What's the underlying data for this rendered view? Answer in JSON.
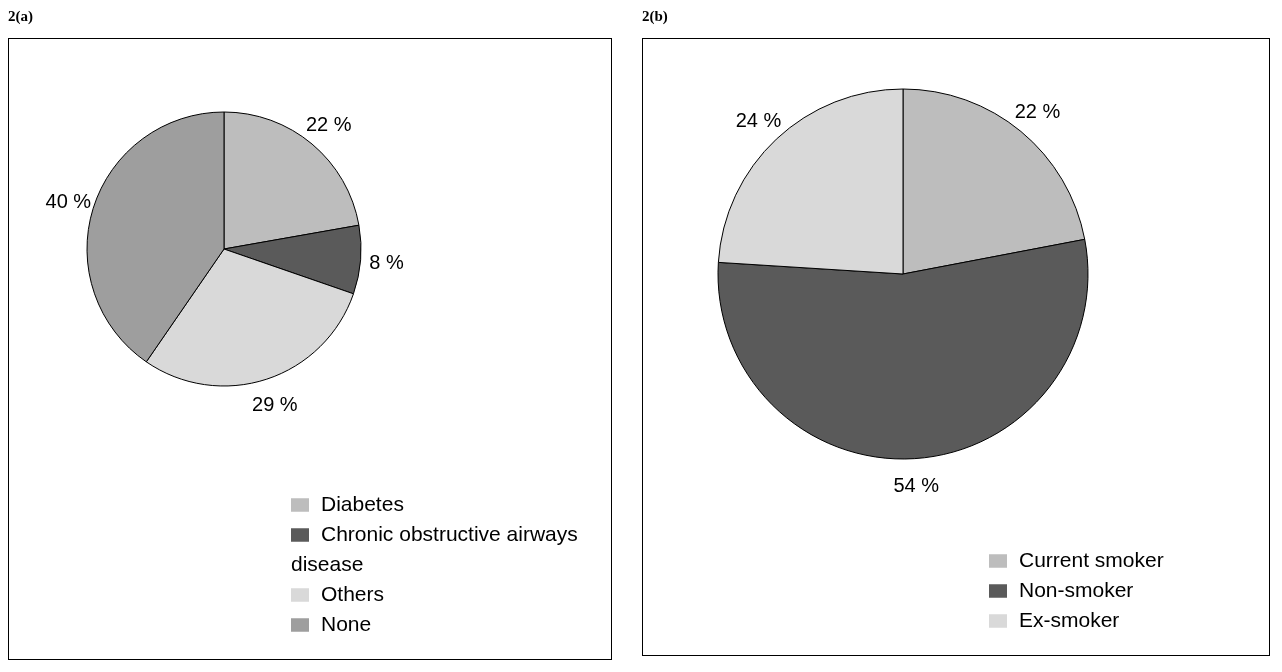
{
  "chart_data": [
    {
      "type": "pie",
      "title": "2(a)",
      "categories": [
        "Diabetes",
        "Chronic obstructive airways disease",
        "Others",
        "None"
      ],
      "values": [
        22,
        8,
        29,
        40
      ],
      "value_labels": [
        "22 %",
        "8 %",
        "29 %",
        "40 %"
      ],
      "colors": [
        "#bdbdbd",
        "#5a5a5a",
        "#d9d9d9",
        "#9e9e9e"
      ],
      "legend": "bottom right"
    },
    {
      "type": "pie",
      "title": "2(b)",
      "categories": [
        "Current smoker",
        "Non-smoker",
        "Ex-smoker"
      ],
      "values": [
        22,
        54,
        24
      ],
      "value_labels": [
        "22 %",
        "54 %",
        "24 %"
      ],
      "colors": [
        "#bdbdbd",
        "#5a5a5a",
        "#d9d9d9"
      ],
      "legend": "bottom right"
    }
  ]
}
